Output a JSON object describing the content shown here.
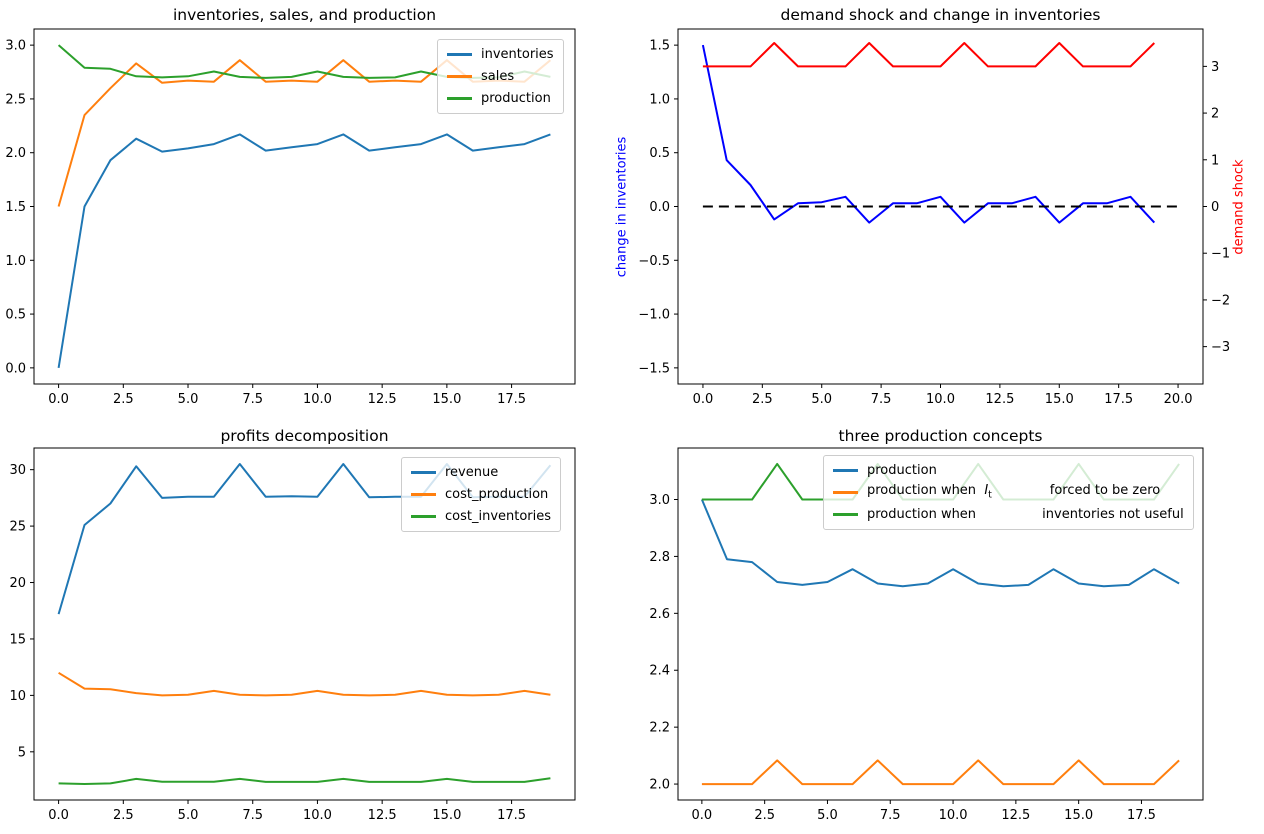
{
  "figure": {
    "background": "#ffffff"
  },
  "colors": {
    "C0": "#1f77b4",
    "C1": "#ff7f0e",
    "C2": "#2ca02c",
    "pure_blue": "#0000ff",
    "pure_red": "#ff0000",
    "black": "#000000"
  },
  "chart_data": [
    {
      "type": "line",
      "title": "inventories, sales, and production",
      "x": [
        0,
        1,
        2,
        3,
        4,
        5,
        6,
        7,
        8,
        9,
        10,
        11,
        12,
        13,
        14,
        15,
        16,
        17,
        18,
        19
      ],
      "xlim": [
        -0.95,
        19.95
      ],
      "ylim": [
        -0.15,
        3.15
      ],
      "grid": false,
      "xticks": {
        "values": [
          0,
          2.5,
          5,
          7.5,
          10,
          12.5,
          15,
          17.5
        ],
        "labels": [
          "0.0",
          "2.5",
          "5.0",
          "7.5",
          "10.0",
          "12.5",
          "15.0",
          "17.5"
        ]
      },
      "yticks": {
        "values": [
          0,
          0.5,
          1,
          1.5,
          2,
          2.5,
          3
        ],
        "labels": [
          "0.0",
          "0.5",
          "1.0",
          "1.5",
          "2.0",
          "2.5",
          "3.0"
        ]
      },
      "legend": {
        "location": "upper right"
      },
      "series": [
        {
          "name": "inventories",
          "color": "#1f77b4",
          "values": [
            0.0,
            1.5,
            1.93,
            2.13,
            2.01,
            2.04,
            2.08,
            2.17,
            2.02,
            2.05,
            2.08,
            2.17,
            2.02,
            2.05,
            2.08,
            2.17,
            2.02,
            2.05,
            2.08,
            2.17
          ]
        },
        {
          "name": "sales",
          "color": "#ff7f0e",
          "values": [
            1.5,
            2.35,
            2.6,
            2.83,
            2.65,
            2.67,
            2.66,
            2.86,
            2.66,
            2.67,
            2.66,
            2.86,
            2.66,
            2.67,
            2.66,
            2.86,
            2.66,
            2.67,
            2.66,
            2.86
          ]
        },
        {
          "name": "production",
          "color": "#2ca02c",
          "values": [
            3.0,
            2.79,
            2.78,
            2.71,
            2.7,
            2.71,
            2.755,
            2.705,
            2.695,
            2.705,
            2.755,
            2.705,
            2.695,
            2.7,
            2.755,
            2.705,
            2.695,
            2.7,
            2.755,
            2.705
          ]
        }
      ]
    },
    {
      "type": "line",
      "title": "demand shock and change in inventories",
      "x": [
        0,
        1,
        2,
        3,
        4,
        5,
        6,
        7,
        8,
        9,
        10,
        11,
        12,
        13,
        14,
        15,
        16,
        17,
        18,
        19
      ],
      "xlim": [
        -1.05,
        21.05
      ],
      "ylim": [
        -1.65,
        1.65
      ],
      "ylim_right": [
        -3.8,
        3.8
      ],
      "grid": false,
      "xticks": {
        "values": [
          0,
          2.5,
          5,
          7.5,
          10,
          12.5,
          15,
          17.5,
          20
        ],
        "labels": [
          "0.0",
          "2.5",
          "5.0",
          "7.5",
          "10.0",
          "12.5",
          "15.0",
          "17.5",
          "20.0"
        ]
      },
      "yticks": {
        "values": [
          -1.5,
          -1,
          -0.5,
          0,
          0.5,
          1,
          1.5
        ],
        "labels": [
          "−1.5",
          "−1.0",
          "−0.5",
          "0.0",
          "0.5",
          "1.0",
          "1.5"
        ]
      },
      "yticks_right": {
        "values": [
          -3,
          -2,
          -1,
          0,
          1,
          2,
          3
        ],
        "labels": [
          "−3",
          "−2",
          "−1",
          "0",
          "1",
          "2",
          "3"
        ]
      },
      "ylabel_left": {
        "text": "change in inventories",
        "color": "#0000ff"
      },
      "ylabel_right": {
        "text": "demand shock",
        "color": "#ff0000"
      },
      "series": [
        {
          "name": "change in inventories",
          "color": "#0000ff",
          "axis": "left",
          "in_legend": false,
          "values": [
            1.5,
            0.43,
            0.2,
            -0.12,
            0.03,
            0.04,
            0.09,
            -0.15,
            0.03,
            0.03,
            0.09,
            -0.15,
            0.03,
            0.03,
            0.09,
            -0.15,
            0.03,
            0.03,
            0.09,
            -0.15
          ]
        },
        {
          "name": "zero line",
          "color": "#000000",
          "axis": "left",
          "dash": true,
          "in_legend": false,
          "x": [
            0,
            20
          ],
          "values": [
            0,
            0
          ]
        },
        {
          "name": "demand shock",
          "color": "#ff0000",
          "axis": "right",
          "in_legend": false,
          "values": [
            3,
            3,
            3,
            3.5,
            3,
            3,
            3,
            3.5,
            3,
            3,
            3,
            3.5,
            3,
            3,
            3,
            3.5,
            3,
            3,
            3,
            3.5
          ]
        }
      ]
    },
    {
      "type": "line",
      "title": "profits decomposition",
      "x": [
        0,
        1,
        2,
        3,
        4,
        5,
        6,
        7,
        8,
        9,
        10,
        11,
        12,
        13,
        14,
        15,
        16,
        17,
        18,
        19
      ],
      "xlim": [
        -0.95,
        19.95
      ],
      "ylim": [
        0.73,
        31.92
      ],
      "grid": false,
      "xticks": {
        "values": [
          0,
          2.5,
          5,
          7.5,
          10,
          12.5,
          15,
          17.5
        ],
        "labels": [
          "0.0",
          "2.5",
          "5.0",
          "7.5",
          "10.0",
          "12.5",
          "15.0",
          "17.5"
        ]
      },
      "yticks": {
        "values": [
          5,
          10,
          15,
          20,
          25,
          30
        ],
        "labels": [
          "5",
          "10",
          "15",
          "20",
          "25",
          "30"
        ]
      },
      "legend": {
        "location": "upper right"
      },
      "series": [
        {
          "name": "revenue",
          "color": "#1f77b4",
          "values": [
            17.2,
            25.1,
            27.0,
            30.3,
            27.5,
            27.6,
            27.6,
            30.5,
            27.6,
            27.65,
            27.6,
            30.5,
            27.55,
            27.6,
            27.6,
            30.5,
            27.55,
            27.6,
            27.6,
            30.4
          ]
        },
        {
          "name": "cost_production",
          "color": "#ff7f0e",
          "values": [
            12.0,
            10.6,
            10.55,
            10.2,
            10.0,
            10.05,
            10.4,
            10.05,
            10.0,
            10.05,
            10.4,
            10.05,
            10.0,
            10.05,
            10.4,
            10.05,
            10.0,
            10.05,
            10.4,
            10.05
          ]
        },
        {
          "name": "cost_inventories",
          "color": "#2ca02c",
          "values": [
            2.2,
            2.15,
            2.2,
            2.6,
            2.35,
            2.35,
            2.35,
            2.6,
            2.33,
            2.33,
            2.33,
            2.6,
            2.33,
            2.33,
            2.33,
            2.6,
            2.33,
            2.33,
            2.33,
            2.65
          ]
        }
      ]
    },
    {
      "type": "line",
      "title": "three production concepts",
      "x": [
        0,
        1,
        2,
        3,
        4,
        5,
        6,
        7,
        8,
        9,
        10,
        11,
        12,
        13,
        14,
        15,
        16,
        17,
        18,
        19
      ],
      "xlim": [
        -0.95,
        19.95
      ],
      "ylim": [
        1.944,
        3.181
      ],
      "grid": false,
      "xticks": {
        "values": [
          0,
          2.5,
          5,
          7.5,
          10,
          12.5,
          15,
          17.5
        ],
        "labels": [
          "0.0",
          "2.5",
          "5.0",
          "7.5",
          "10.0",
          "12.5",
          "15.0",
          "17.5"
        ]
      },
      "yticks": {
        "values": [
          2.0,
          2.2,
          2.4,
          2.6,
          2.8,
          3.0
        ],
        "labels": [
          "2.0",
          "2.2",
          "2.4",
          "2.6",
          "2.8",
          "3.0"
        ]
      },
      "legend": {
        "location": "upper center"
      },
      "series": [
        {
          "name": "production",
          "label": "production",
          "color": "#1f77b4",
          "values": [
            3.0,
            2.79,
            2.78,
            2.71,
            2.7,
            2.71,
            2.755,
            2.705,
            2.695,
            2.705,
            2.755,
            2.705,
            2.695,
            2.7,
            2.755,
            2.705,
            2.695,
            2.7,
            2.755,
            2.705
          ]
        },
        {
          "name": "production when I_t forced to be zero",
          "label": "production when  $I_t$              forced to be zero",
          "color": "#ff7f0e",
          "values": [
            2.0,
            2.0,
            2.0,
            2.083,
            2.0,
            2.0,
            2.0,
            2.083,
            2.0,
            2.0,
            2.0,
            2.083,
            2.0,
            2.0,
            2.0,
            2.083,
            2.0,
            2.0,
            2.0,
            2.083
          ]
        },
        {
          "name": "production when inventories not useful",
          "label": "production when                inventories not useful",
          "color": "#2ca02c",
          "values": [
            3.0,
            3.0,
            3.0,
            3.125,
            3.0,
            3.0,
            3.0,
            3.125,
            3.0,
            3.0,
            3.0,
            3.125,
            3.0,
            3.0,
            3.0,
            3.125,
            3.0,
            3.0,
            3.0,
            3.125
          ]
        }
      ]
    }
  ]
}
